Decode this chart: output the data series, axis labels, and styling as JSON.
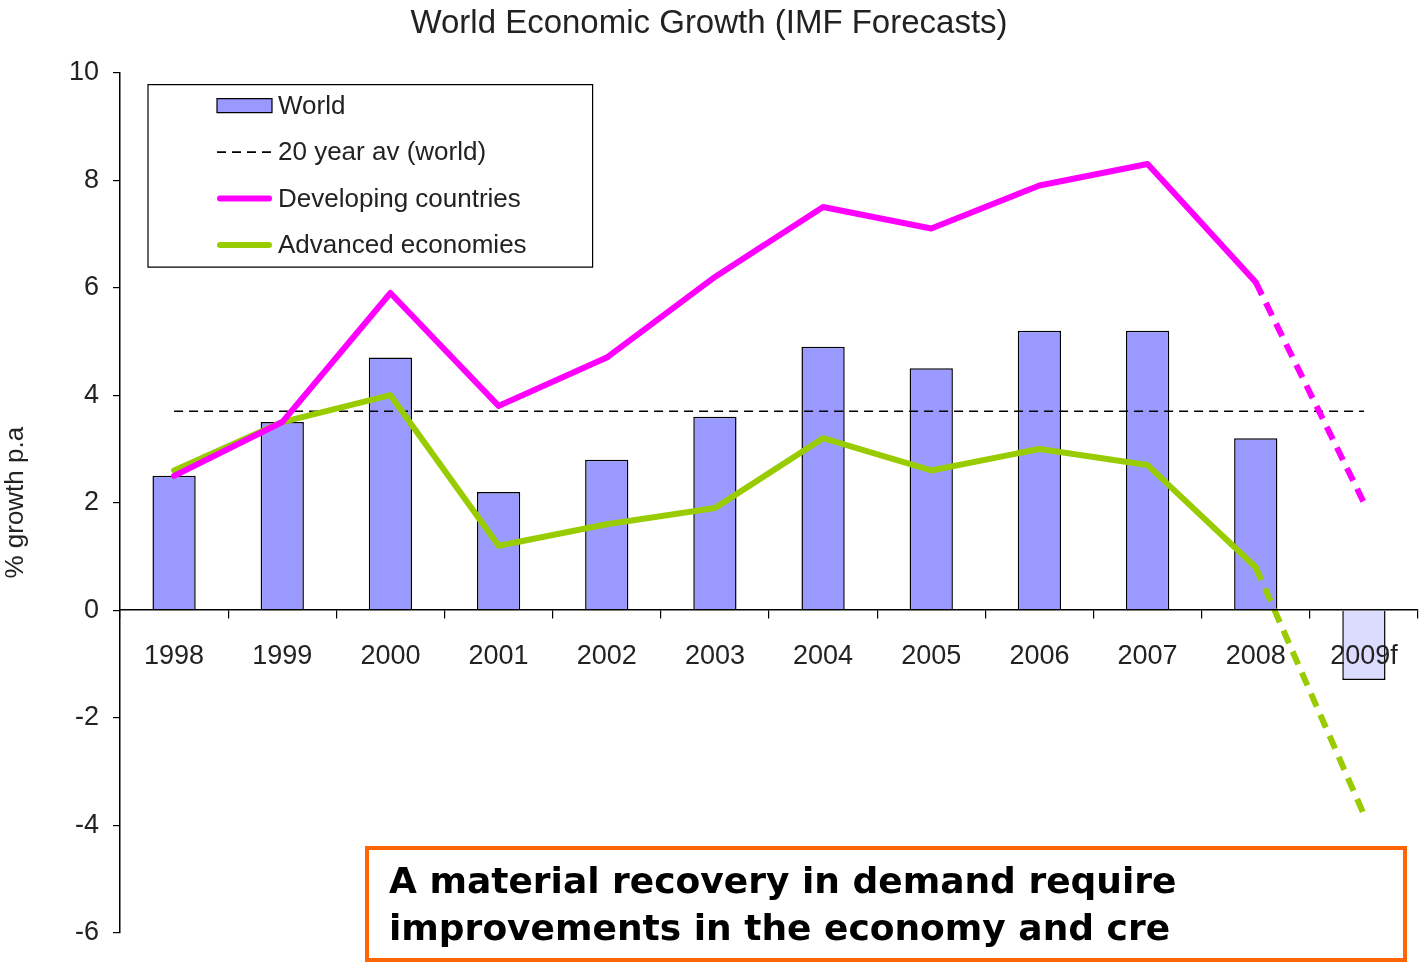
{
  "chart_data": {
    "type": "bar",
    "title": "World Economic Growth (IMF Forecasts)",
    "ylabel": "% growth p.a",
    "categories": [
      "1998",
      "1999",
      "2000",
      "2001",
      "2002",
      "2003",
      "2004",
      "2005",
      "2006",
      "2007",
      "2008",
      "2009f"
    ],
    "series": [
      {
        "name": "World",
        "color": "#9999ff",
        "colors": [
          "#9999ff",
          "#9999ff",
          "#9999ff",
          "#9999ff",
          "#9999ff",
          "#9999ff",
          "#9999ff",
          "#9999ff",
          "#9999ff",
          "#9999ff",
          "#9999ff",
          "#dcdcff"
        ],
        "values": [
          2.5,
          3.5,
          4.7,
          2.2,
          2.8,
          3.6,
          4.9,
          4.5,
          5.2,
          5.2,
          3.2,
          -1.3
        ]
      },
      {
        "name": "Developing countries",
        "type": "line",
        "color": "#ff00ff",
        "line_style": "solid",
        "values": [
          2.5,
          3.5,
          5.9,
          3.8,
          4.7,
          6.2,
          7.5,
          7.1,
          7.9,
          8.3,
          6.1,
          null
        ]
      },
      {
        "type": "line",
        "color": "#ff00ff",
        "line_style": "dashed",
        "values": [
          null,
          null,
          null,
          null,
          null,
          null,
          null,
          null,
          null,
          null,
          6.1,
          2.0
        ]
      },
      {
        "name": "Advanced economies",
        "type": "line",
        "color": "#99cc00",
        "line_style": "solid",
        "values": [
          2.6,
          3.5,
          4.0,
          1.2,
          1.6,
          1.9,
          3.2,
          2.6,
          3.0,
          2.7,
          0.8,
          null
        ]
      },
      {
        "type": "line",
        "color": "#99cc00",
        "line_style": "dashed",
        "values": [
          null,
          null,
          null,
          null,
          null,
          null,
          null,
          null,
          null,
          null,
          0.8,
          -3.8
        ]
      }
    ],
    "ref_lines": [
      {
        "axis": "y",
        "value": 3.7,
        "label": "20 year av (world)",
        "color": "#000000",
        "line_style": "dashed"
      }
    ],
    "ylim": [
      -6,
      10
    ],
    "yticks": [
      -6,
      -4,
      -2,
      0,
      2,
      4,
      6,
      8,
      10
    ],
    "grid": false,
    "legend": "top left",
    "marker": "none",
    "annotations": [
      "A material recovery in demand require improvements in the economy and cre"
    ]
  }
}
